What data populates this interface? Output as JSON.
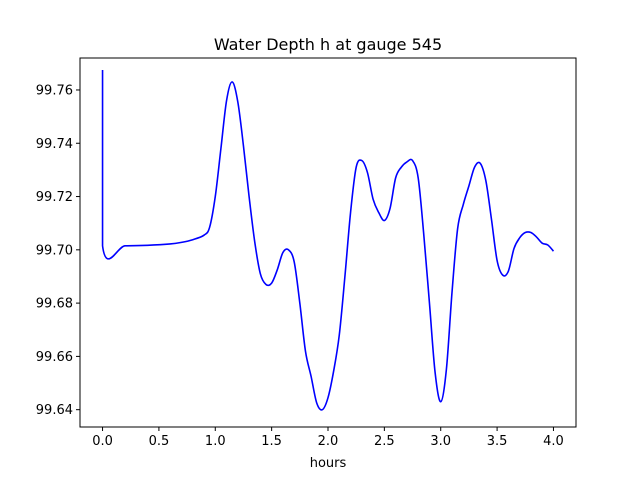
{
  "chart_data": {
    "type": "line",
    "title": "Water Depth h at gauge 545",
    "xlabel": "hours",
    "ylabel": "",
    "xlim": [
      -0.2,
      4.2
    ],
    "ylim": [
      99.6335,
      99.772
    ],
    "x_ticks": [
      0.0,
      0.5,
      1.0,
      1.5,
      2.0,
      2.5,
      3.0,
      3.5,
      4.0
    ],
    "x_tick_labels": [
      "0.0",
      "0.5",
      "1.0",
      "1.5",
      "2.0",
      "2.5",
      "3.0",
      "3.5",
      "4.0"
    ],
    "y_ticks": [
      99.64,
      99.66,
      99.68,
      99.7,
      99.72,
      99.74,
      99.76
    ],
    "y_tick_labels": [
      "99.64",
      "99.66",
      "99.68",
      "99.70",
      "99.72",
      "99.74",
      "99.76"
    ],
    "grid": false,
    "series": [
      {
        "color": "#0000ff",
        "points": [
          [
            0.0,
            99.7675
          ],
          [
            0.0,
            99.7015
          ],
          [
            0.2,
            99.7015
          ],
          [
            0.4,
            99.7017
          ],
          [
            0.6,
            99.7022
          ],
          [
            0.7,
            99.7028
          ],
          [
            0.8,
            99.7038
          ],
          [
            0.9,
            99.7055
          ],
          [
            0.95,
            99.7085
          ],
          [
            1.0,
            99.72
          ],
          [
            1.05,
            99.738
          ],
          [
            1.1,
            99.756
          ],
          [
            1.15,
            99.763
          ],
          [
            1.2,
            99.7555
          ],
          [
            1.25,
            99.739
          ],
          [
            1.3,
            99.72
          ],
          [
            1.35,
            99.703
          ],
          [
            1.4,
            99.691
          ],
          [
            1.45,
            99.687
          ],
          [
            1.5,
            99.6875
          ],
          [
            1.55,
            99.6925
          ],
          [
            1.6,
            99.699
          ],
          [
            1.65,
            99.7
          ],
          [
            1.7,
            99.6955
          ],
          [
            1.75,
            99.68
          ],
          [
            1.8,
            99.662
          ],
          [
            1.85,
            99.6525
          ],
          [
            1.9,
            99.6425
          ],
          [
            1.95,
            99.64
          ],
          [
            2.0,
            99.6445
          ],
          [
            2.05,
            99.6545
          ],
          [
            2.1,
            99.668
          ],
          [
            2.15,
            99.69
          ],
          [
            2.2,
            99.714
          ],
          [
            2.25,
            99.731
          ],
          [
            2.3,
            99.7335
          ],
          [
            2.35,
            99.729
          ],
          [
            2.4,
            99.719
          ],
          [
            2.45,
            99.714
          ],
          [
            2.5,
            99.711
          ],
          [
            2.55,
            99.7155
          ],
          [
            2.6,
            99.727
          ],
          [
            2.65,
            99.731
          ],
          [
            2.7,
            99.733
          ],
          [
            2.75,
            99.7335
          ],
          [
            2.8,
            99.727
          ],
          [
            2.85,
            99.7055
          ],
          [
            2.9,
            99.68
          ],
          [
            2.95,
            99.654
          ],
          [
            3.0,
            99.643
          ],
          [
            3.05,
            99.655
          ],
          [
            3.1,
            99.684
          ],
          [
            3.15,
            99.708
          ],
          [
            3.2,
            99.717
          ],
          [
            3.25,
            99.724
          ],
          [
            3.3,
            99.731
          ],
          [
            3.35,
            99.7325
          ],
          [
            3.4,
            99.726
          ],
          [
            3.45,
            99.7115
          ],
          [
            3.5,
            99.696
          ],
          [
            3.55,
            99.6905
          ],
          [
            3.6,
            99.692
          ],
          [
            3.65,
            99.7005
          ],
          [
            3.7,
            99.7045
          ],
          [
            3.75,
            99.7065
          ],
          [
            3.8,
            99.7065
          ],
          [
            3.85,
            99.7048
          ],
          [
            3.9,
            99.7025
          ],
          [
            3.95,
            99.7018
          ],
          [
            4.0,
            99.6995
          ]
        ]
      }
    ]
  }
}
